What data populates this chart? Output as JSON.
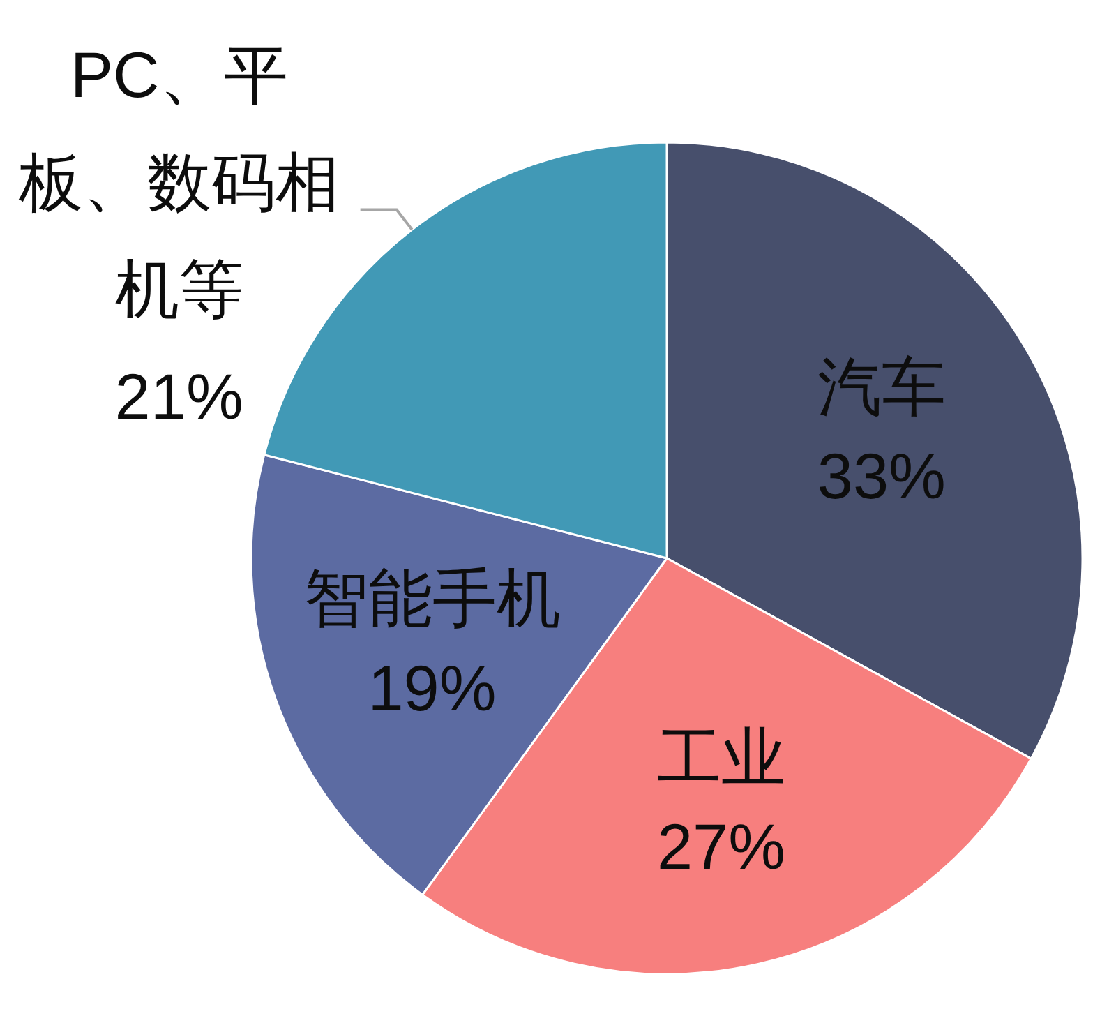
{
  "chart_data": {
    "type": "pie",
    "categories": [
      "汽车",
      "工业",
      "智能手机",
      "PC、平板、数码相机等"
    ],
    "values": [
      33,
      27,
      19,
      21
    ],
    "colors": [
      "#474f6c",
      "#f77f7e",
      "#5c6ba2",
      "#4199b6"
    ],
    "value_labels": [
      "33%",
      "27%",
      "19%",
      "21%"
    ]
  }
}
